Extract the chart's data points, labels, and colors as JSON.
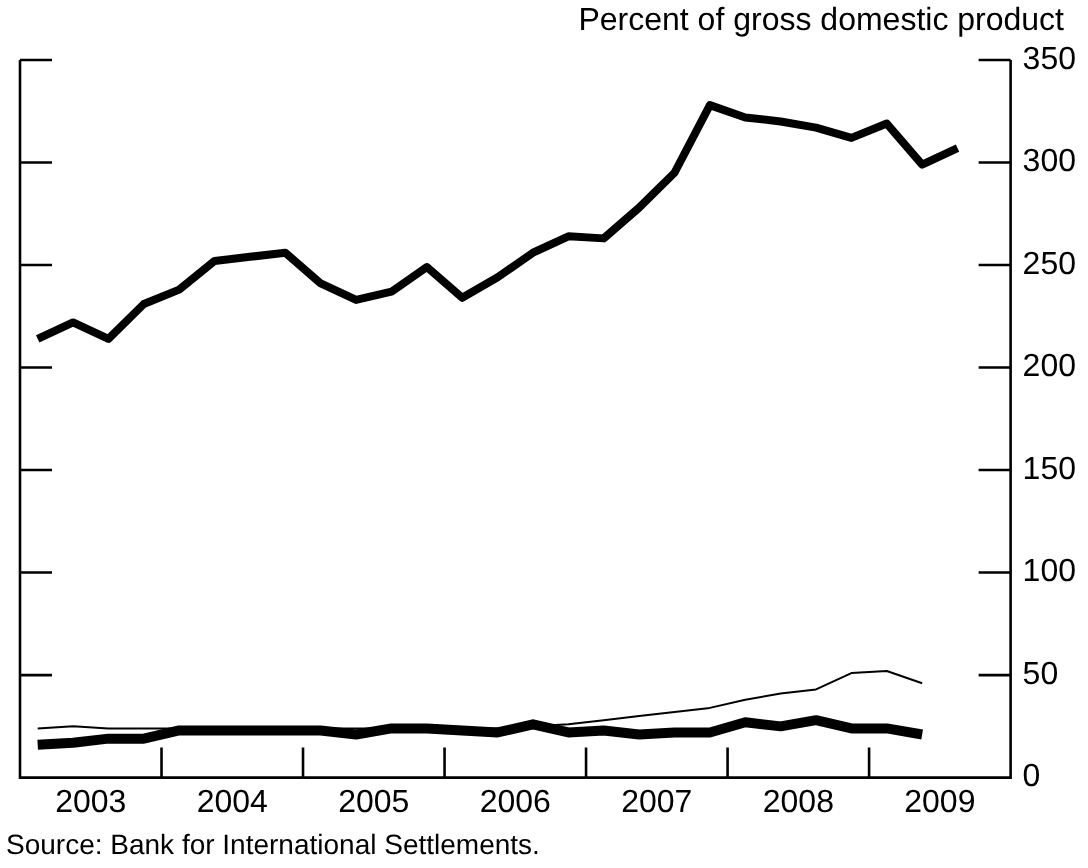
{
  "chart_data": {
    "type": "line",
    "ylabel": "Percent of gross domestic product",
    "x": [
      2003.125,
      2003.375,
      2003.625,
      2003.875,
      2004.125,
      2004.375,
      2004.625,
      2004.875,
      2005.125,
      2005.375,
      2005.625,
      2005.875,
      2006.125,
      2006.375,
      2006.625,
      2006.875,
      2007.125,
      2007.375,
      2007.625,
      2007.875,
      2008.125,
      2008.375,
      2008.625,
      2008.875,
      2009.125,
      2009.375,
      2009.625
    ],
    "series": [
      {
        "color": "#000000",
        "values": [
          214,
          222,
          214,
          231,
          238,
          252,
          254,
          256,
          241,
          233,
          237,
          249,
          234,
          244,
          256,
          264,
          263,
          278,
          295,
          328,
          322,
          320,
          317,
          312,
          319,
          299,
          307
        ]
      },
      {
        "color": "#000000",
        "values": [
          24,
          25,
          24,
          24,
          24,
          24,
          24,
          24,
          24,
          24,
          24,
          24,
          24,
          24,
          25,
          26,
          28,
          30,
          32,
          34,
          38,
          41,
          43,
          51,
          52,
          46,
          null
        ]
      },
      {
        "color": "#000000",
        "values": [
          16,
          17,
          19,
          19,
          23,
          23,
          23,
          23,
          23,
          21,
          24,
          24,
          23,
          22,
          26,
          22,
          23,
          21,
          22,
          22,
          27,
          25,
          28,
          24,
          24,
          21,
          null
        ]
      }
    ],
    "xlim": [
      2003,
      2010
    ],
    "xticks": [
      {
        "value": 2003.5,
        "label": "2003"
      },
      {
        "value": 2004,
        "label": null
      },
      {
        "value": 2004.5,
        "label": "2004"
      },
      {
        "value": 2005,
        "label": null
      },
      {
        "value": 2005.5,
        "label": "2005"
      },
      {
        "value": 2006,
        "label": null
      },
      {
        "value": 2006.5,
        "label": "2006"
      },
      {
        "value": 2007,
        "label": null
      },
      {
        "value": 2007.5,
        "label": "2007"
      },
      {
        "value": 2008,
        "label": null
      },
      {
        "value": 2008.5,
        "label": "2008"
      },
      {
        "value": 2009,
        "label": null
      },
      {
        "value": 2009.5,
        "label": "2009"
      }
    ],
    "ylim": [
      0,
      350
    ],
    "yticks": [
      0,
      50,
      100,
      150,
      200,
      250,
      300,
      350
    ],
    "grid": false,
    "legend": false,
    "marker": "none",
    "line_style": "solid",
    "annotations": [
      "Source: Bank for International Settlements."
    ]
  }
}
